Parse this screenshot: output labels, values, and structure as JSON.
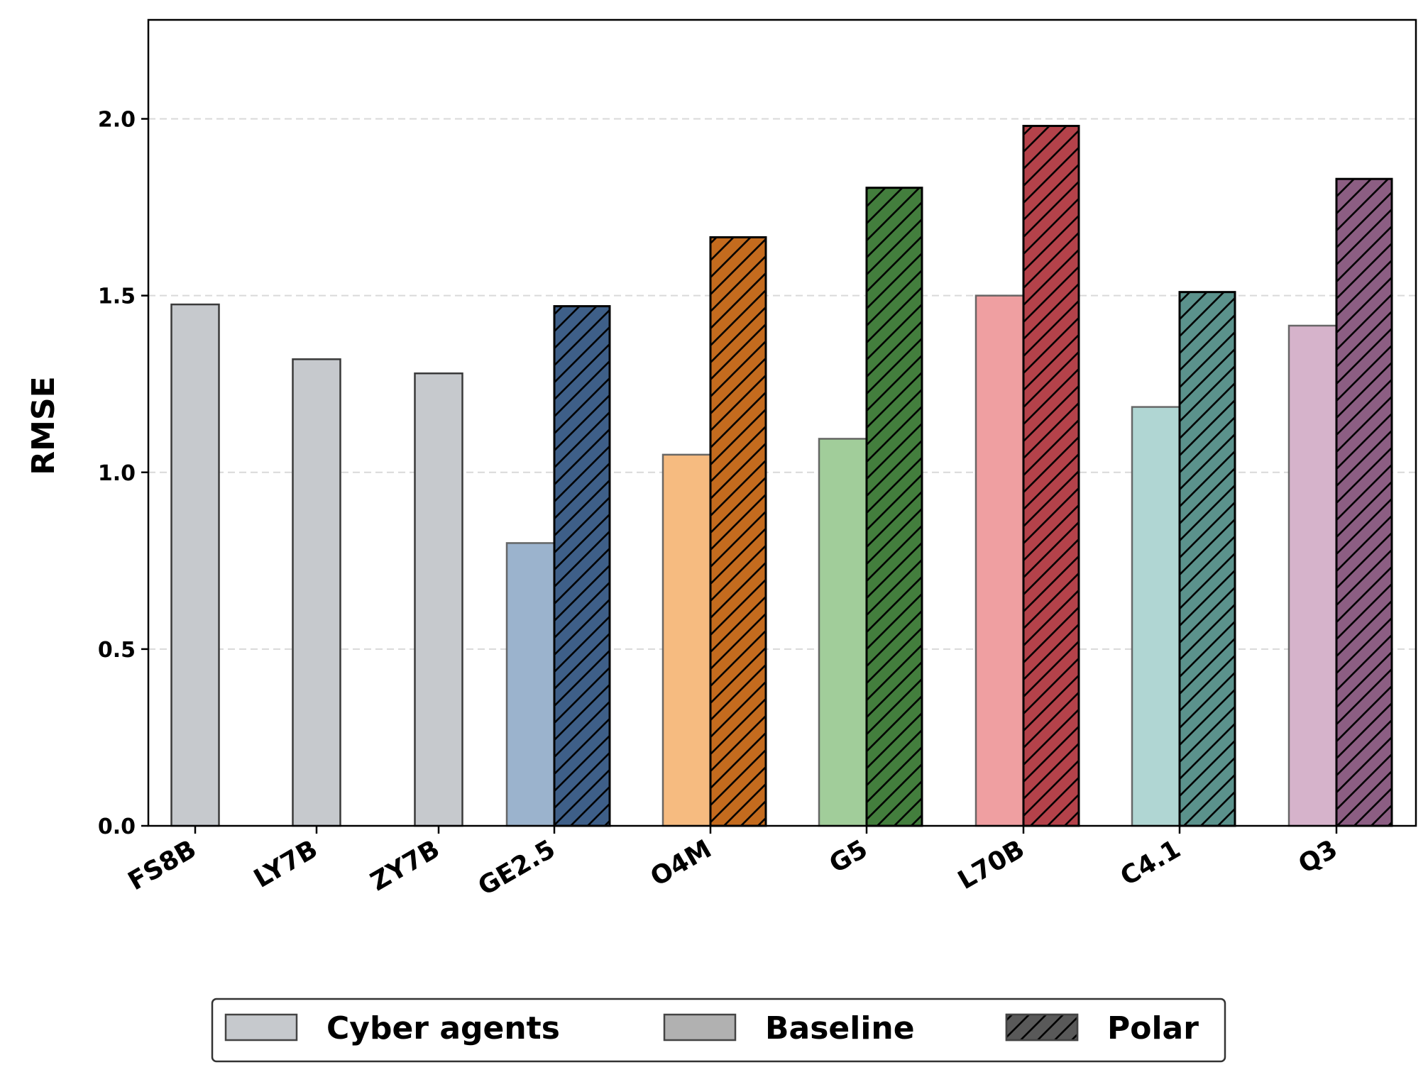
{
  "chart_data": {
    "type": "bar",
    "title": "",
    "xlabel": "",
    "ylabel": "RMSE",
    "ylim": [
      0,
      2.28
    ],
    "yticks": [
      "0.0",
      "0.5",
      "1.0",
      "1.5",
      "2.0"
    ],
    "grid": "horizontal dashed",
    "categories": [
      "FS8B",
      "LY7B",
      "ZY7B",
      "GE2.5",
      "O4M",
      "G5",
      "L70B",
      "C4.1",
      "Q3"
    ],
    "series": [
      {
        "name": "Cyber agents",
        "values": [
          1.475,
          1.32,
          1.28,
          null,
          null,
          null,
          null,
          null,
          null
        ],
        "colors": [
          "#c6c9cd",
          "#c6c9cd",
          "#c6c9cd"
        ]
      },
      {
        "name": "Baseline",
        "values": [
          null,
          null,
          null,
          0.8,
          1.05,
          1.095,
          1.5,
          1.185,
          1.415
        ],
        "colors": [
          "#9bb3cd",
          "#f6bb80",
          "#a1cd9a",
          "#ef9fa1",
          "#b0d6d3",
          "#d6b3cb"
        ]
      },
      {
        "name": "Polar",
        "values": [
          null,
          null,
          null,
          1.47,
          1.665,
          1.805,
          1.98,
          1.51,
          1.83
        ],
        "colors": [
          "#3e5f88",
          "#c46b1e",
          "#437e3d",
          "#b4424a",
          "#5b928c",
          "#8c5e83"
        ],
        "hatch": "diagonal"
      }
    ],
    "legend": {
      "placement": "bottom-center",
      "entries": [
        {
          "label": "Cyber agents",
          "color": "#c6c9cd"
        },
        {
          "label": "Baseline",
          "color": "#b1b1b1"
        },
        {
          "label": "Polar",
          "color": "#595959",
          "hatch": true
        }
      ]
    }
  }
}
